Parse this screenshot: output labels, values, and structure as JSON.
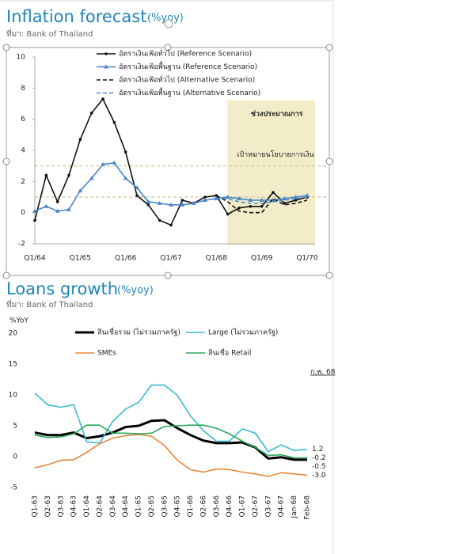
{
  "chart_data": [
    {
      "type": "line",
      "title": "Inflation forecast",
      "title_unit": "(%yoy)",
      "subtitle": "ที่มา: Bank of Thailand",
      "categories": [
        "Q1/64",
        null,
        null,
        null,
        "Q1/65",
        null,
        null,
        null,
        "Q1/66",
        null,
        null,
        null,
        "Q1/67",
        null,
        null,
        null,
        "Q1/68",
        null,
        null,
        null,
        "Q1/69",
        null,
        null,
        null,
        "Q1/70"
      ],
      "series": [
        {
          "name": "อัตราเงินเฟ้อทั่วไป (Reference Scenario)",
          "color": "#111111",
          "dash": false,
          "marker": "circle",
          "values": [
            -0.5,
            2.4,
            0.7,
            2.4,
            4.7,
            6.4,
            7.3,
            5.8,
            3.9,
            1.1,
            0.5,
            -0.5,
            -0.8,
            0.8,
            0.6,
            1.0,
            1.1,
            -0.1,
            0.3,
            0.4,
            0.4,
            1.3,
            0.6,
            0.8,
            1.0
          ]
        },
        {
          "name": "อัตราเงินเฟ้อพื้นฐาน (Reference Scenario)",
          "color": "#4a86c8",
          "dash": false,
          "marker": "triangle",
          "values": [
            0.1,
            0.4,
            0.1,
            0.2,
            1.4,
            2.2,
            3.1,
            3.2,
            2.2,
            1.6,
            0.7,
            0.6,
            0.5,
            0.5,
            0.6,
            0.8,
            0.9,
            1.0,
            0.9,
            0.8,
            0.8,
            0.8,
            0.9,
            1.0,
            1.1
          ]
        },
        {
          "name": "อัตราเงินเฟ้อทั่วไป (Alternative Scenario)",
          "color": "#111111",
          "dash": true,
          "marker": null,
          "values": [
            null,
            null,
            null,
            null,
            null,
            null,
            null,
            null,
            null,
            null,
            null,
            null,
            null,
            null,
            null,
            null,
            1.1,
            0.7,
            0.1,
            0.0,
            0.0,
            0.9,
            0.5,
            0.6,
            0.8
          ]
        },
        {
          "name": "อัตราเงินเฟ้อพื้นฐาน (Alternative Scenario)",
          "color": "#4a86c8",
          "dash": true,
          "marker": null,
          "values": [
            null,
            null,
            null,
            null,
            null,
            null,
            null,
            null,
            null,
            null,
            null,
            null,
            null,
            null,
            null,
            null,
            0.9,
            0.9,
            0.7,
            0.6,
            0.6,
            0.7,
            0.8,
            0.9,
            1.0
          ]
        }
      ],
      "ylim": [
        -2,
        10
      ],
      "yticks": [
        -2,
        0,
        2,
        4,
        6,
        8,
        10
      ],
      "target_band": [
        1,
        3
      ],
      "target_label": "เป้าหมายนโยบายการเงิน",
      "forecast_region": {
        "label": "ช่วงประมาณการ",
        "from": "Q1/68",
        "to": "Q1/70",
        "color": "#f2edc8"
      }
    },
    {
      "type": "line",
      "title": "Loans growth",
      "title_unit": "(%yoy)",
      "subtitle": "ที่มา: Bank of Thailand",
      "y_label": "%YoY",
      "annotation": "ก.พ. 68",
      "categories": [
        "Q1-63",
        "Q2-63",
        "Q3-63",
        "Q4-63",
        "Q1-64",
        "Q2-64",
        "Q3-64",
        "Q4-64",
        "Q1-65",
        "Q2-65",
        "Q3-65",
        "Q4-65",
        "Q1-66",
        "Q2-66",
        "Q3-66",
        "Q4-66",
        "Q1-67",
        "Q2-67",
        "Q3-67",
        "Q4-67",
        "Jan-68",
        "Feb-68"
      ],
      "series": [
        {
          "name": "สินเชื่อรวม (ไม่รวมภาครัฐ)",
          "color": "#000000",
          "width": 3,
          "values": [
            3.9,
            3.5,
            3.5,
            3.9,
            3.0,
            3.3,
            3.9,
            4.8,
            5.0,
            5.8,
            5.9,
            4.6,
            3.5,
            2.6,
            2.2,
            2.2,
            2.3,
            1.5,
            -0.3,
            -0.1,
            -0.5,
            -0.5
          ]
        },
        {
          "name": "Large (ไม่รวมภาครัฐ)",
          "color": "#3bb8d6",
          "width": 1.6,
          "values": [
            10.3,
            8.4,
            8.0,
            8.4,
            2.4,
            2.2,
            5.7,
            7.7,
            8.8,
            11.6,
            11.6,
            9.9,
            6.6,
            4.2,
            2.5,
            2.5,
            4.5,
            3.8,
            0.8,
            1.9,
            1.0,
            1.2
          ]
        },
        {
          "name": "SMEs",
          "color": "#e8873a",
          "width": 1.6,
          "values": [
            -1.8,
            -1.3,
            -0.6,
            -0.5,
            0.7,
            2.1,
            3.0,
            3.4,
            3.6,
            3.3,
            1.8,
            -0.6,
            -2.1,
            -2.5,
            -2.0,
            -2.1,
            -2.5,
            -2.8,
            -3.2,
            -2.6,
            -2.8,
            -3.0
          ],
          "value_labels": [
            null,
            null,
            null,
            null,
            null,
            null,
            null,
            null,
            null,
            null,
            null,
            null,
            null,
            null,
            null,
            null,
            null,
            null,
            null,
            null,
            null,
            "-3.0"
          ]
        },
        {
          "name": "สินเชื่อ Retail",
          "color": "#2aa85a",
          "width": 1.6,
          "values": [
            3.5,
            3.1,
            3.2,
            3.7,
            5.1,
            5.1,
            3.8,
            3.8,
            3.7,
            3.8,
            4.9,
            5.0,
            5.1,
            5.1,
            4.6,
            3.7,
            2.5,
            1.5,
            0.2,
            0.3,
            -0.2,
            -0.2
          ]
        }
      ],
      "ylim": [
        -5,
        20
      ],
      "yticks": [
        -5,
        0,
        5,
        10,
        15,
        20
      ]
    }
  ]
}
